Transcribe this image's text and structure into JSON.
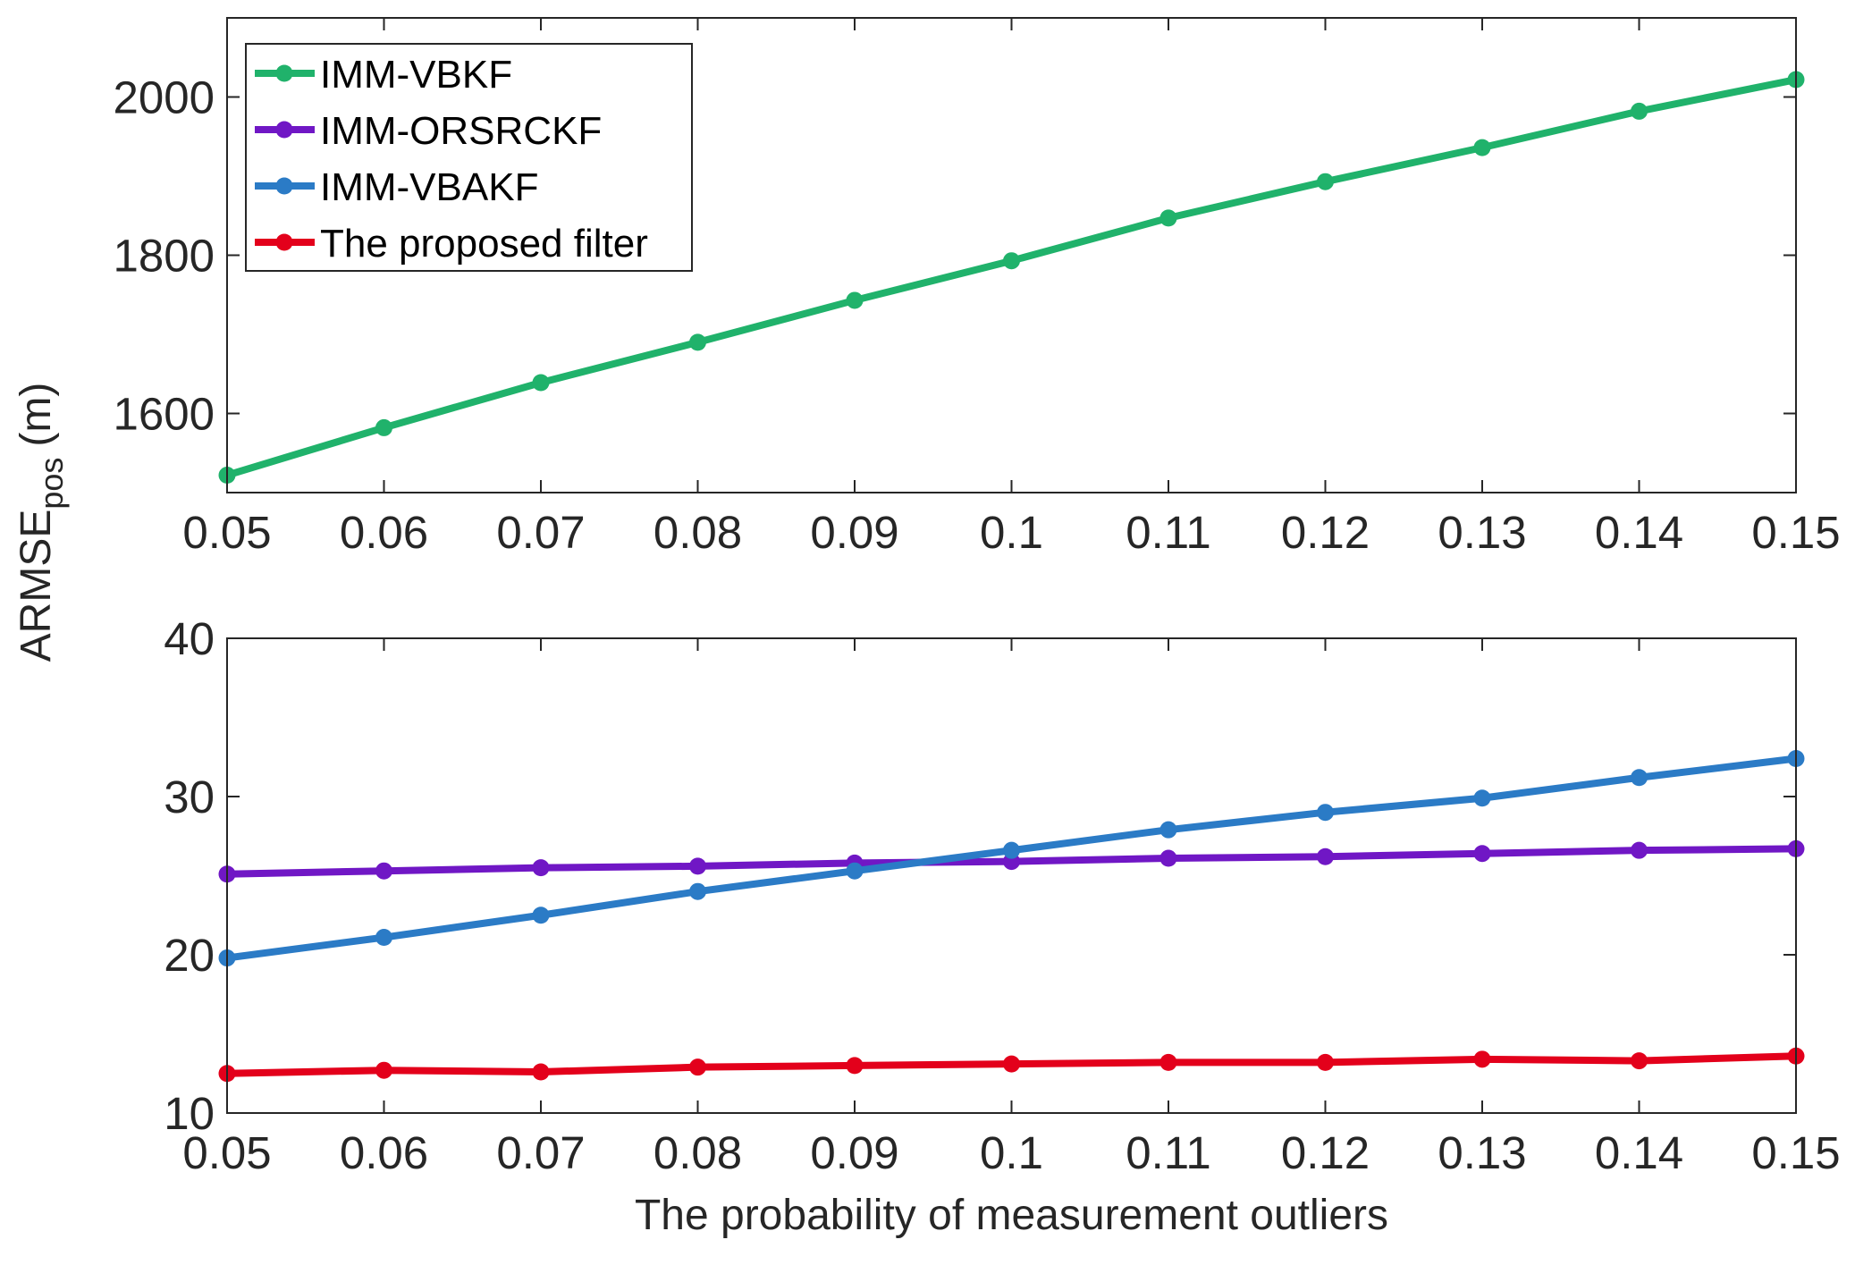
{
  "ylabel": {
    "main": "ARMSE",
    "subscript": "pos",
    "unit": "(m)"
  },
  "chart_data": [
    {
      "type": "line",
      "x": [
        0.05,
        0.06,
        0.07,
        0.08,
        0.09,
        0.1,
        0.11,
        0.12,
        0.13,
        0.14,
        0.15
      ],
      "xlim": [
        0.05,
        0.15
      ],
      "xticks": [
        0.05,
        0.06,
        0.07,
        0.08,
        0.09,
        0.1,
        0.11,
        0.12,
        0.13,
        0.14,
        0.15
      ],
      "ylim": [
        1500,
        2100
      ],
      "yticks": [
        1600,
        1800,
        2000
      ],
      "legend": "upper left",
      "series": [
        {
          "name": "IMM-VBKF",
          "color": "#20b26b",
          "values": [
            1522,
            1582,
            1639,
            1690,
            1743,
            1793,
            1847,
            1893,
            1936,
            1982,
            2022
          ]
        }
      ]
    },
    {
      "type": "line",
      "x": [
        0.05,
        0.06,
        0.07,
        0.08,
        0.09,
        0.1,
        0.11,
        0.12,
        0.13,
        0.14,
        0.15
      ],
      "xlim": [
        0.05,
        0.15
      ],
      "xticks": [
        0.05,
        0.06,
        0.07,
        0.08,
        0.09,
        0.1,
        0.11,
        0.12,
        0.13,
        0.14,
        0.15
      ],
      "ylim": [
        10,
        40
      ],
      "yticks": [
        10,
        20,
        30,
        40
      ],
      "xlabel": "The probability of measurement outliers",
      "series": [
        {
          "name": "IMM-ORSRCKF",
          "color": "#7017c5",
          "values": [
            25.1,
            25.3,
            25.5,
            25.6,
            25.8,
            25.9,
            26.1,
            26.2,
            26.4,
            26.6,
            26.7
          ]
        },
        {
          "name": "IMM-VBAKF",
          "color": "#2b7bc6",
          "values": [
            19.8,
            21.1,
            22.5,
            24.0,
            25.3,
            26.6,
            27.9,
            29.0,
            29.9,
            31.2,
            32.4
          ]
        },
        {
          "name": "The proposed filter",
          "color": "#e3001b",
          "values": [
            12.5,
            12.7,
            12.6,
            12.9,
            13.0,
            13.1,
            13.2,
            13.2,
            13.4,
            13.3,
            13.6
          ]
        }
      ]
    }
  ]
}
